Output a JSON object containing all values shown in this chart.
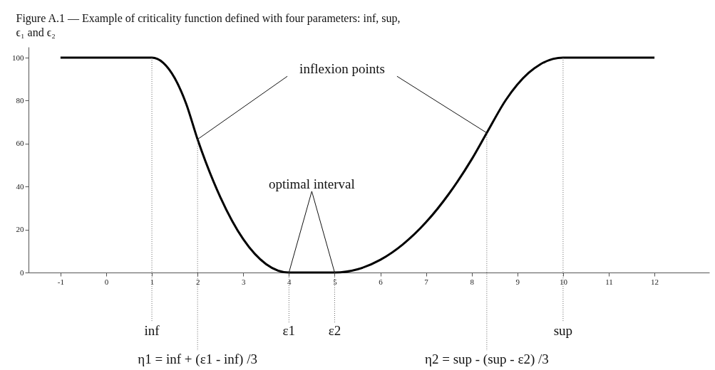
{
  "chart_data": {
    "type": "line",
    "title": "Figure A.1 — Example of criticality function defined with four parameters: inf, sup, ϵ₁ and ϵ₂",
    "x": [
      -1,
      1,
      1.25,
      1.5,
      1.75,
      2,
      2.5,
      3,
      3.5,
      4,
      5,
      5.5,
      6,
      6.5,
      7,
      7.5,
      8,
      8.33,
      8.75,
      9.25,
      9.5,
      10,
      12
    ],
    "series": [
      {
        "color": "#000000",
        "values": [
          100,
          100,
          97.6,
          90.5,
          78.6,
          62,
          35,
          15.5,
          3.9,
          0,
          0,
          1.5,
          5.9,
          13.2,
          23.4,
          36.6,
          52.7,
          65,
          80.4,
          93,
          96.9,
          100,
          100
        ]
      }
    ],
    "xlim": [
      -1.7,
      13.2
    ],
    "ylim": [
      0,
      105
    ],
    "xticks": [
      -1,
      0,
      1,
      2,
      3,
      4,
      5,
      6,
      7,
      8,
      9,
      10,
      11,
      12
    ],
    "yticks": [
      0,
      20,
      40,
      60,
      80,
      100
    ],
    "ref_lines": [
      {
        "axis": "x",
        "value": 1,
        "label": "inf",
        "line_style": "dotted"
      },
      {
        "axis": "x",
        "value": 2,
        "label": "η1 = inf + (ε1 - inf) /3",
        "line_style": "dotted"
      },
      {
        "axis": "x",
        "value": 4,
        "label": "ε1",
        "line_style": "dotted"
      },
      {
        "axis": "x",
        "value": 5,
        "label": "ε2",
        "line_style": "dotted"
      },
      {
        "axis": "x",
        "value": 8.33,
        "label": "η2 = sup - (sup - ε2) /3",
        "line_style": "dotted"
      },
      {
        "axis": "x",
        "value": 10,
        "label": "sup",
        "line_style": "dotted"
      }
    ],
    "annotations": [
      {
        "text": "inflexion points",
        "x": 2,
        "y": 62
      },
      {
        "text": "optimal interval",
        "x": 4,
        "y": 0
      }
    ],
    "grid": false,
    "marker": "none",
    "line_style": "solid"
  }
}
